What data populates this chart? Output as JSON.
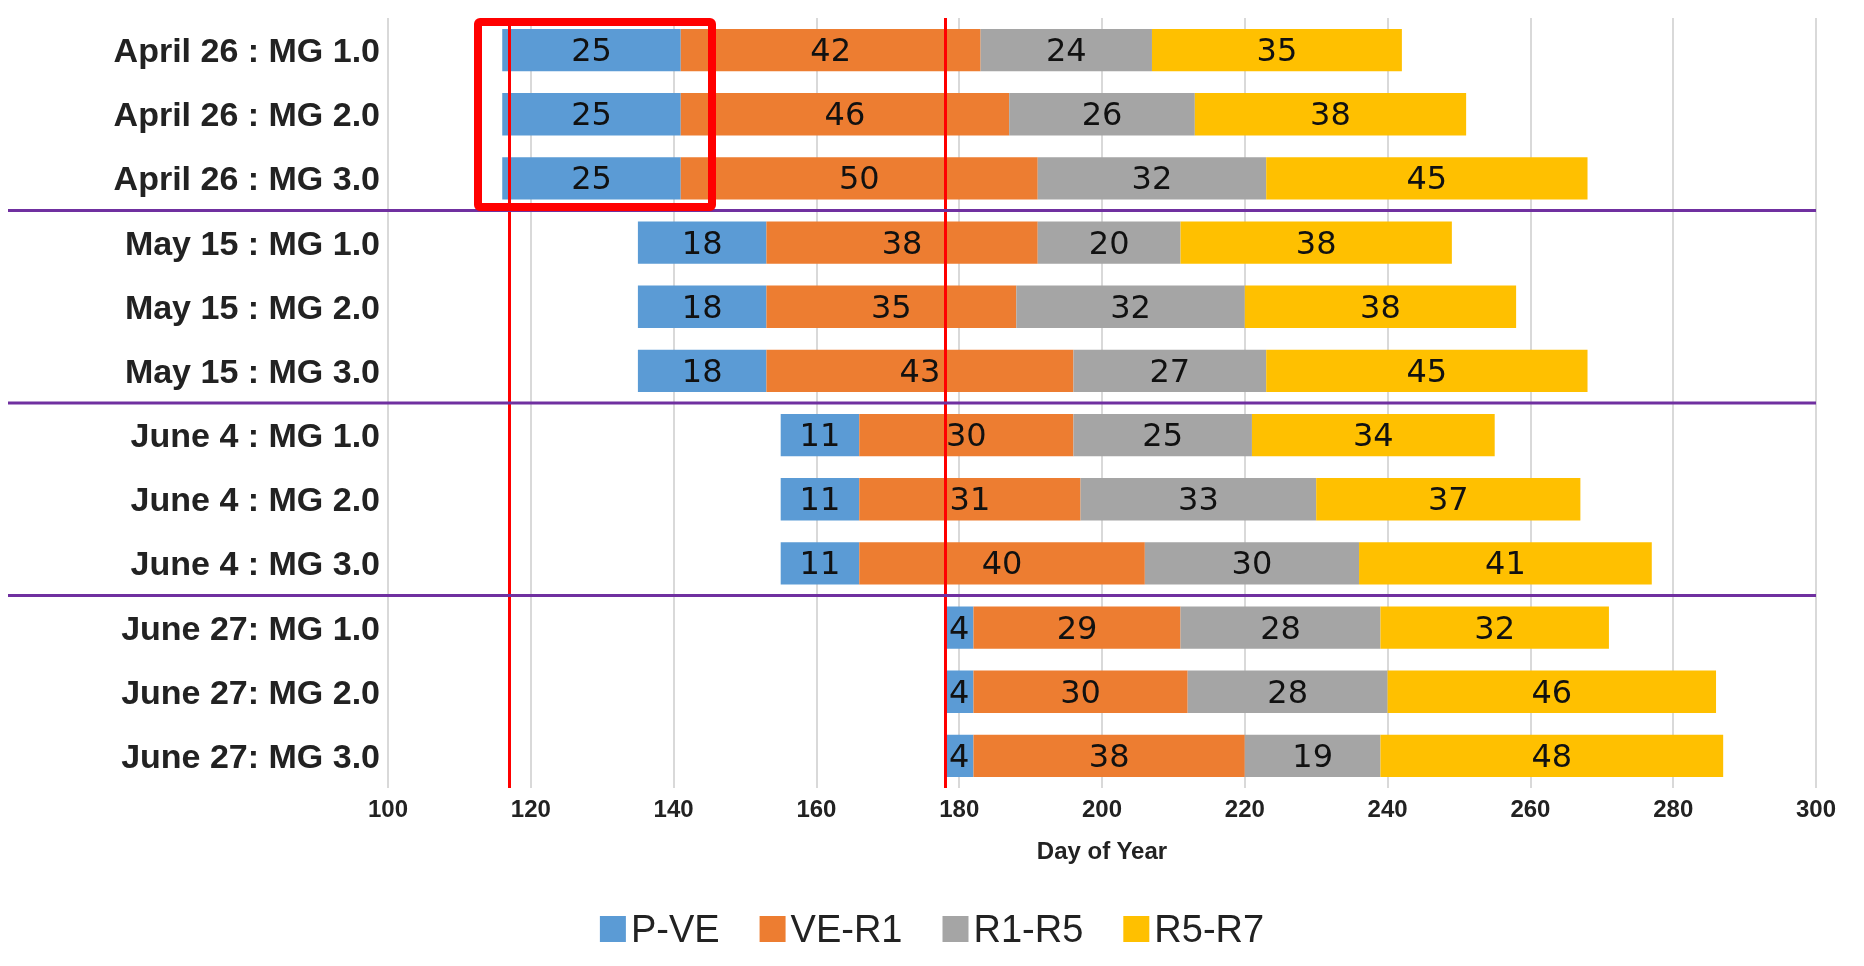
{
  "chart_data": {
    "type": "bar",
    "orientation": "horizontal",
    "xlabel": "Day of Year",
    "categories": [
      "April 26 : MG 1.0",
      "April 26 : MG 2.0",
      "April 26 : MG 3.0",
      "May 15 : MG 1.0",
      "May 15 : MG 2.0",
      "May 15 : MG 3.0",
      "June 4 : MG 1.0",
      "June 4 : MG 2.0",
      "June 4 : MG 3.0",
      "June 27: MG 1.0",
      "June 27: MG 2.0",
      "June 27: MG 3.0"
    ],
    "series": [
      {
        "name": "P-VE",
        "color": "#5b9bd5",
        "values": [
          25,
          25,
          25,
          18,
          18,
          18,
          11,
          11,
          11,
          4,
          4,
          4
        ],
        "base": [
          116,
          116,
          116,
          135,
          135,
          135,
          155,
          155,
          155,
          178,
          178,
          178
        ]
      },
      {
        "name": "VE-R1",
        "color": "#ed7d31",
        "values": [
          42,
          46,
          50,
          38,
          35,
          43,
          30,
          31,
          40,
          29,
          30,
          38
        ],
        "base": [
          141,
          141,
          141,
          153,
          153,
          153,
          166,
          166,
          166,
          182,
          182,
          182
        ]
      },
      {
        "name": "R1-R5",
        "color": "#a5a5a5",
        "values": [
          24,
          26,
          32,
          20,
          32,
          27,
          25,
          33,
          30,
          28,
          28,
          19
        ],
        "base": [
          183,
          187,
          191,
          191,
          188,
          196,
          196,
          197,
          206,
          211,
          212,
          220
        ]
      },
      {
        "name": "R5-R7",
        "color": "#ffc000",
        "values": [
          35,
          38,
          45,
          38,
          38,
          45,
          34,
          37,
          41,
          32,
          46,
          48
        ],
        "base": [
          207,
          213,
          223,
          211,
          220,
          223,
          221,
          230,
          236,
          239,
          240,
          239
        ]
      }
    ],
    "xlim": [
      100,
      300
    ],
    "xticks": [
      100,
      120,
      140,
      160,
      180,
      200,
      220,
      240,
      260,
      280,
      300
    ],
    "grid": "x",
    "legend": "bottom",
    "data_labels": true,
    "ref_lines": [
      {
        "axis": "x",
        "value": 117,
        "color": "#ff0000"
      },
      {
        "axis": "x",
        "value": 178,
        "color": "#ff0000"
      }
    ]
  }
}
